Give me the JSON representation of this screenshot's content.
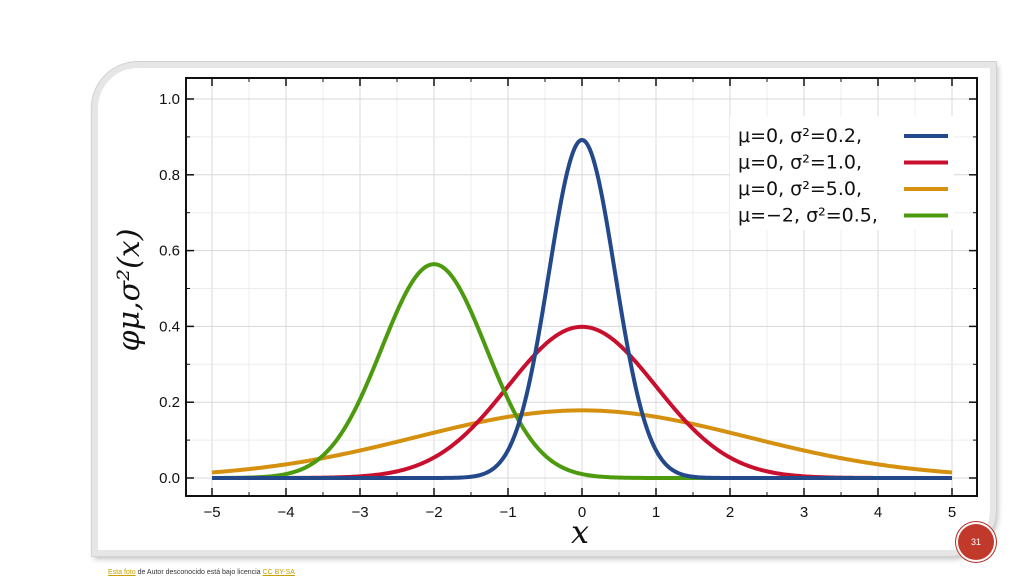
{
  "chart_data": {
    "type": "line",
    "xlabel": "x",
    "ylabel": "φμ,σ²(x)",
    "xlim": [
      -5,
      5
    ],
    "ylim": [
      0,
      1.0
    ],
    "x_ticks": [
      "−5",
      "−4",
      "−3",
      "−2",
      "−1",
      "0",
      "1",
      "2",
      "3",
      "4",
      "5"
    ],
    "y_ticks": [
      "0.0",
      "0.2",
      "0.4",
      "0.6",
      "0.8",
      "1.0"
    ],
    "grid": true,
    "legend_position": "top-right",
    "series": [
      {
        "name": "μ=0,   σ²=0.2,",
        "mu": 0,
        "variance": 0.2,
        "color": "#23498b",
        "peak": 0.892
      },
      {
        "name": "μ=0,   σ²=1.0,",
        "mu": 0,
        "variance": 1.0,
        "color": "#c8102e",
        "peak": 0.399
      },
      {
        "name": "μ=0,   σ²=5.0,",
        "mu": 0,
        "variance": 5.0,
        "color": "#d4900e",
        "peak": 0.178
      },
      {
        "name": "μ=−2, σ²=0.5,",
        "mu": -2,
        "variance": 0.5,
        "color": "#4c9a0e",
        "peak": 0.564
      }
    ]
  },
  "credit": {
    "link1": "Esta foto",
    "text": " de Autor desconocido está bajo licencia ",
    "link2": "CC BY-SA"
  },
  "slide_number": "31"
}
